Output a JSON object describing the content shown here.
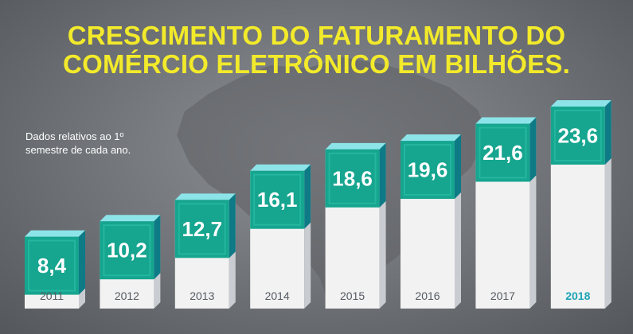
{
  "title_line_1": "CRESCIMENTO DO FATURAMENTO DO",
  "title_line_2": "COMÉRCIO ELETRÔNICO EM BILHÕES.",
  "note": "Dados relativos ao 1º semestre de cada ano.",
  "colors": {
    "title": "#f2ea2a",
    "cube_front": "#16a58f",
    "cube_top": "#8ce4e9",
    "cube_side": "#0e7a86",
    "column": "#f2f2f2",
    "highlight_year": "#1ba3b5"
  },
  "chart_data": {
    "type": "bar",
    "title": "CRESCIMENTO DO FATURAMENTO DO COMÉRCIO ELETRÔNICO EM BILHÕES.",
    "categories": [
      "2011",
      "2012",
      "2013",
      "2014",
      "2015",
      "2016",
      "2017",
      "2018"
    ],
    "values": [
      8.4,
      10.2,
      12.7,
      16.1,
      18.6,
      19.6,
      21.6,
      23.6
    ],
    "value_labels": [
      "8,4",
      "10,2",
      "12,7",
      "16,1",
      "18,6",
      "19,6",
      "21,6",
      "23,6"
    ],
    "highlighted_category": "2018",
    "xlabel": "",
    "ylabel": "",
    "grid": false,
    "legend": "none"
  }
}
